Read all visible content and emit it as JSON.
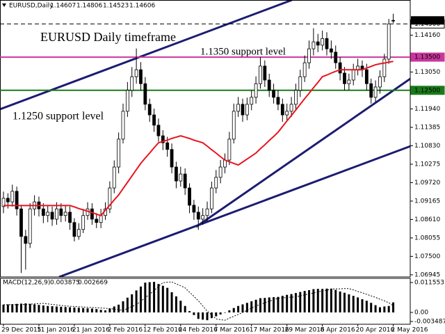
{
  "chart_data": [
    {
      "type": "candlestick",
      "title": "EURUSD Daily timeframe",
      "symbol": "EURUSD,Daily",
      "categories": [
        "29 Dec 2015",
        null,
        null,
        null,
        null,
        null,
        null,
        null,
        "11 Jan 2016",
        null,
        null,
        null,
        null,
        null,
        null,
        null,
        "21 Jan 2016",
        null,
        null,
        null,
        null,
        null,
        null,
        null,
        "2 Feb 2016",
        null,
        null,
        null,
        null,
        null,
        null,
        null,
        "12 Feb 2016",
        null,
        null,
        null,
        null,
        null,
        null,
        null,
        "24 Feb 2016",
        null,
        null,
        null,
        null,
        null,
        null,
        null,
        "7 Mar 2016",
        null,
        null,
        null,
        null,
        null,
        null,
        null,
        "17 Mar 2016",
        null,
        null,
        null,
        null,
        null,
        null,
        null,
        "29 Mar 2016",
        null,
        null,
        null,
        null,
        null,
        null,
        null,
        "8 Apr 2016",
        null,
        null,
        null,
        null,
        null,
        null,
        null,
        "20 Apr 2016",
        null,
        null,
        null,
        null,
        null,
        null,
        null,
        "2 May 2016"
      ],
      "open": [
        1.09,
        1.0925,
        1.0914,
        1.0946,
        1.0893,
        1.081,
        1.0789,
        1.0893,
        1.0914,
        1.0893,
        1.0873,
        1.0883,
        1.0862,
        1.0893,
        1.0873,
        1.0883,
        1.0852,
        1.081,
        1.0831,
        1.0873,
        1.0893,
        1.0862,
        1.0852,
        1.0873,
        1.0893,
        1.0956,
        1.1019,
        1.1103,
        1.1187,
        1.125,
        1.1291,
        1.1312,
        1.127,
        1.1208,
        1.1176,
        1.1145,
        1.1113,
        1.1092,
        1.1072,
        1.1019,
        1.0977,
        1.0998,
        1.0956,
        1.0904,
        1.0883,
        1.0862,
        1.0873,
        1.0893,
        1.0956,
        1.0988,
        1.1019,
        1.104,
        1.1103,
        1.1187,
        1.1208,
        1.1176,
        1.1208,
        1.1229,
        1.127,
        1.1323,
        1.1281,
        1.125,
        1.1229,
        1.1208,
        1.1176,
        1.1187,
        1.1208,
        1.125,
        1.1291,
        1.1333,
        1.1375,
        1.1396,
        1.1386,
        1.1406,
        1.1375,
        1.1365,
        1.1333,
        1.1302,
        1.127,
        1.1281,
        1.1312,
        1.1323,
        1.1312,
        1.127,
        1.1229,
        1.126,
        1.1291,
        1.1344,
        1.14607
      ],
      "high": [
        1.0945,
        1.094,
        1.0966,
        1.096,
        1.0905,
        1.083,
        1.091,
        1.0934,
        1.093,
        1.091,
        1.0903,
        1.09,
        1.0913,
        1.091,
        1.0903,
        1.09,
        1.0865,
        1.085,
        1.0893,
        1.0913,
        1.091,
        1.088,
        1.0893,
        1.0913,
        1.0976,
        1.1039,
        1.1123,
        1.121,
        1.1275,
        1.132,
        1.1376,
        1.1335,
        1.129,
        1.1225,
        1.1195,
        1.1165,
        1.113,
        1.111,
        1.109,
        1.1035,
        1.102,
        1.1015,
        1.097,
        1.092,
        1.09,
        1.0895,
        1.0915,
        1.0975,
        1.101,
        1.104,
        1.106,
        1.1125,
        1.121,
        1.123,
        1.1225,
        1.1228,
        1.125,
        1.1292,
        1.135,
        1.134,
        1.13,
        1.127,
        1.125,
        1.1225,
        1.121,
        1.123,
        1.127,
        1.1312,
        1.1355,
        1.14,
        1.1437,
        1.142,
        1.143,
        1.1425,
        1.14,
        1.1385,
        1.135,
        1.132,
        1.13,
        1.133,
        1.1345,
        1.134,
        1.133,
        1.1285,
        1.128,
        1.131,
        1.136,
        1.1465,
        1.14806
      ],
      "low": [
        1.088,
        1.0894,
        1.09,
        1.0873,
        1.07,
        1.071,
        1.0775,
        1.0873,
        1.087,
        1.085,
        1.0853,
        1.0842,
        1.0845,
        1.0853,
        1.0855,
        1.083,
        1.0795,
        1.08,
        1.082,
        1.086,
        1.0845,
        1.0835,
        1.0835,
        1.086,
        1.088,
        1.094,
        1.1,
        1.109,
        1.117,
        1.123,
        1.127,
        1.125,
        1.119,
        1.1155,
        1.1125,
        1.1095,
        1.107,
        1.105,
        1.1,
        1.0955,
        1.096,
        1.0935,
        1.088,
        1.086,
        1.083,
        1.0845,
        1.0855,
        1.088,
        1.094,
        1.097,
        1.1,
        1.1025,
        1.109,
        1.117,
        1.1155,
        1.116,
        1.119,
        1.121,
        1.1255,
        1.126,
        1.123,
        1.121,
        1.119,
        1.1155,
        1.116,
        1.117,
        1.119,
        1.123,
        1.1275,
        1.1315,
        1.1355,
        1.1365,
        1.137,
        1.1355,
        1.1345,
        1.1315,
        1.128,
        1.125,
        1.125,
        1.1265,
        1.1295,
        1.129,
        1.125,
        1.121,
        1.1215,
        1.124,
        1.1275,
        1.133,
        1.14523
      ],
      "close": [
        1.0925,
        1.0914,
        1.0946,
        1.0893,
        1.081,
        1.0789,
        1.0893,
        1.0914,
        1.0893,
        1.0873,
        1.0883,
        1.0862,
        1.0893,
        1.0873,
        1.0883,
        1.0852,
        1.081,
        1.0831,
        1.0873,
        1.0893,
        1.0862,
        1.0852,
        1.0873,
        1.0893,
        1.0956,
        1.1019,
        1.1103,
        1.1187,
        1.125,
        1.1291,
        1.1312,
        1.127,
        1.1208,
        1.1176,
        1.1145,
        1.1113,
        1.1092,
        1.1072,
        1.1019,
        1.0977,
        1.0998,
        1.0956,
        1.0904,
        1.0883,
        1.0862,
        1.0873,
        1.0893,
        1.0956,
        1.0988,
        1.1019,
        1.104,
        1.1103,
        1.1187,
        1.1208,
        1.1176,
        1.1208,
        1.1229,
        1.127,
        1.1323,
        1.1281,
        1.125,
        1.1229,
        1.1208,
        1.1176,
        1.1187,
        1.1208,
        1.125,
        1.1291,
        1.1333,
        1.1375,
        1.1396,
        1.1386,
        1.1406,
        1.1375,
        1.1365,
        1.1333,
        1.1302,
        1.127,
        1.1281,
        1.1312,
        1.1323,
        1.1312,
        1.127,
        1.1229,
        1.126,
        1.1291,
        1.1344,
        1.145,
        1.14606
      ],
      "up_color": "#ffffff",
      "down_color": "#000000",
      "moving_average": {
        "color": "#e8141e",
        "values": [
          1.0903,
          1.0903,
          1.0903,
          1.0903,
          1.0903,
          1.0903,
          1.0903,
          1.0903,
          1.0903,
          1.0903,
          1.0903,
          1.0903,
          1.0903,
          1.0903,
          1.0903,
          1.0903,
          1.0899,
          1.0894,
          1.089,
          1.0886,
          1.0882,
          1.0877,
          1.0873,
          1.0889,
          1.0904,
          1.092,
          1.0935,
          1.0954,
          1.0973,
          1.0992,
          1.1011,
          1.103,
          1.1046,
          1.1061,
          1.1077,
          1.1092,
          1.1096,
          1.11,
          1.1105,
          1.1109,
          1.1113,
          1.1109,
          1.1105,
          1.11,
          1.1096,
          1.1092,
          1.1082,
          1.1071,
          1.1061,
          1.105,
          1.104,
          1.1035,
          1.103,
          1.1025,
          1.1034,
          1.1043,
          1.1052,
          1.1061,
          1.1074,
          1.1086,
          1.1099,
          1.1111,
          1.1124,
          1.1141,
          1.1158,
          1.1174,
          1.1191,
          1.1208,
          1.1225,
          1.1241,
          1.1258,
          1.1274,
          1.1291,
          1.1296,
          1.1302,
          1.1307,
          1.1312,
          1.1312,
          1.1312,
          1.1312,
          1.1312,
          1.1312,
          1.1317,
          1.1322,
          1.1327,
          1.133,
          1.1332,
          1.1335,
          1.1337
        ]
      },
      "levels": [
        {
          "value": 1.145,
          "label": "1.14500",
          "color": "#000000",
          "style": "dashed"
        },
        {
          "value": 1.135,
          "label": "1.13500",
          "color": "#c8369c",
          "style": "solid",
          "text": "1.1350 support level"
        },
        {
          "value": 1.125,
          "label": "1.12500",
          "color": "#1a7a1a",
          "style": "solid",
          "text": "1.1250 support level"
        }
      ],
      "ylim": [
        1.0688,
        1.1522
      ],
      "yticks": [
        {
          "value": 1.1416,
          "label": "1.14160"
        },
        {
          "value": 1.1305,
          "label": "1.13050"
        },
        {
          "value": 1.1194,
          "label": "1.11940"
        },
        1.11385,
        {
          "value": 1.1083,
          "label": "1.10830"
        },
        1.10275,
        {
          "value": 1.0972,
          "label": "1.09720"
        },
        1.09165,
        {
          "value": 1.0861,
          "label": "1.08610"
        },
        1.08055,
        {
          "value": 1.075,
          "label": "1.07500"
        },
        1.06945
      ],
      "grid": false
    },
    {
      "type": "bar",
      "title": "MACD(12,26,9)",
      "color": "#000000",
      "values": [
        0.003,
        0.0031,
        0.0032,
        0.0033,
        0.0034,
        0.0035,
        0.0033,
        0.0031,
        0.0029,
        0.0027,
        0.0025,
        0.0024,
        0.0023,
        0.0022,
        0.0021,
        0.002,
        0.0019,
        0.0018,
        0.0017,
        0.0016,
        0.0015,
        0.0013,
        0.001,
        0.0008,
        0.0015,
        0.0023,
        0.003,
        0.0043,
        0.0057,
        0.007,
        0.0085,
        0.01,
        0.0115,
        0.0117,
        0.0118,
        0.011,
        0.0103,
        0.0095,
        0.0078,
        0.0062,
        0.0045,
        0.0025,
        0.0005,
        -0.001,
        -0.0025,
        -0.0028,
        -0.003,
        -0.0022,
        -0.0015,
        -0.0008,
        0,
        0.0008,
        0.0017,
        0.0025,
        0.0031,
        0.0037,
        0.0043,
        0.0049,
        0.0055,
        0.0056,
        0.0058,
        0.0059,
        0.006,
        0.0064,
        0.0068,
        0.0071,
        0.0075,
        0.0079,
        0.0083,
        0.0086,
        0.009,
        0.0091,
        0.0091,
        0.0092,
        0.0092,
        0.0087,
        0.0081,
        0.0076,
        0.007,
        0.0064,
        0.0058,
        0.0051,
        0.0045,
        0.0037,
        0.0028,
        0.002,
        0.0023,
        0.0025,
        0.003875
      ],
      "signal": {
        "color": "#000000",
        "style": "dotted",
        "values": [
          0.003,
          0.003,
          0.003,
          0.003,
          0.003,
          0.0031,
          0.0032,
          0.0033,
          0.0034,
          0.0035,
          0.0033,
          0.0031,
          0.0029,
          0.0027,
          0.0025,
          0.0024,
          0.0023,
          0.0022,
          0.0021,
          0.002,
          0.0019,
          0.0018,
          0.0017,
          0.0016,
          0.0015,
          0.0013,
          0.001,
          0.0008,
          0.0015,
          0.0023,
          0.003,
          0.0043,
          0.0057,
          0.007,
          0.0085,
          0.01,
          0.0115,
          0.0117,
          0.0118,
          0.011,
          0.0103,
          0.0095,
          0.0078,
          0.0062,
          0.0045,
          0.0025,
          0.0005,
          -0.001,
          -0.0025,
          -0.0028,
          -0.003,
          -0.0022,
          -0.0015,
          -0.0008,
          0,
          0.0008,
          0.0017,
          0.0025,
          0.0031,
          0.0037,
          0.0043,
          0.0049,
          0.0055,
          0.0056,
          0.0058,
          0.0059,
          0.006,
          0.0064,
          0.0068,
          0.0071,
          0.0075,
          0.0079,
          0.0083,
          0.0086,
          0.009,
          0.0091,
          0.0091,
          0.0092,
          0.0092,
          0.0087,
          0.0081,
          0.0076,
          0.007,
          0.0064,
          0.0058,
          0.0051,
          0.0045,
          0.0037,
          0.002669
        ]
      },
      "ylim": [
        -0.00457,
        0.01317
      ],
      "yticks": [
        0.011553,
        {
          "value": 0,
          "label": "0.00"
        },
        -0.003487
      ],
      "grid": false
    }
  ]
}
